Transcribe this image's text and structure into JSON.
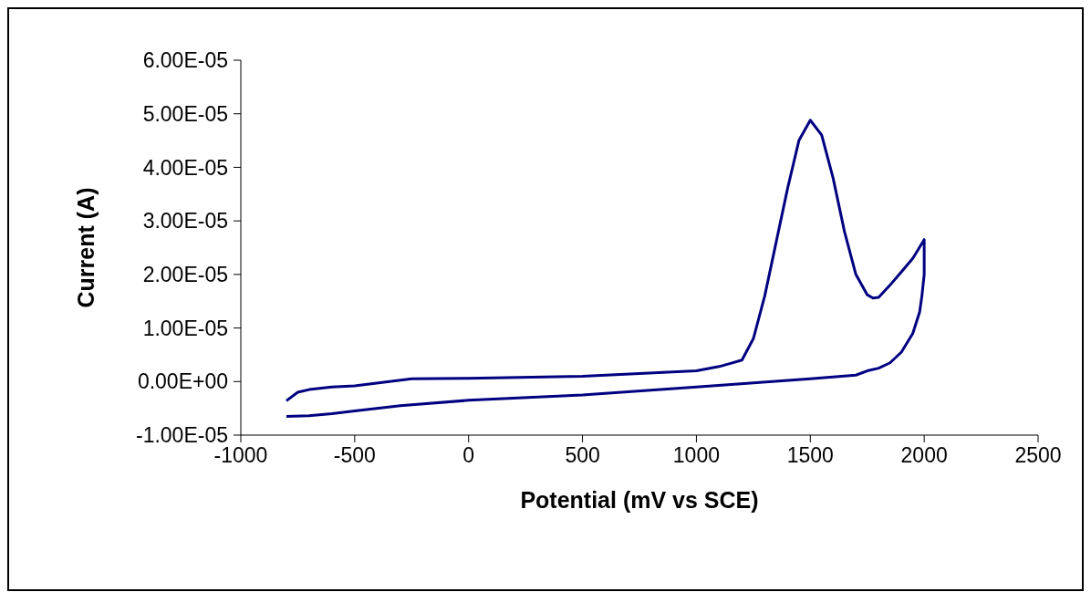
{
  "chart_data": {
    "type": "line",
    "xlabel": "Potential (mV vs SCE)",
    "ylabel": "Current (A)",
    "xlim": [
      -1000,
      2500
    ],
    "xticks": [
      -1000,
      -500,
      0,
      500,
      1000,
      1500,
      2000,
      2500
    ],
    "ylim": [
      -1e-05,
      6e-05
    ],
    "yticks": [
      {
        "value": -1e-05,
        "label": "-1.00E-05"
      },
      {
        "value": 0,
        "label": "0.00E+00"
      },
      {
        "value": 1e-05,
        "label": "1.00E-05"
      },
      {
        "value": 2e-05,
        "label": "2.00E-05"
      },
      {
        "value": 3e-05,
        "label": "3.00E-05"
      },
      {
        "value": 4e-05,
        "label": "4.00E-05"
      },
      {
        "value": 5e-05,
        "label": "5.00E-05"
      },
      {
        "value": 6e-05,
        "label": "6.00E-05"
      }
    ],
    "series": [
      {
        "color": "#000080",
        "x": [
          -800,
          -750,
          -700,
          -600,
          -500,
          -250,
          0,
          500,
          1000,
          1100,
          1150,
          1200,
          1250,
          1300,
          1350,
          1400,
          1450,
          1500,
          1550,
          1600,
          1650,
          1700,
          1750,
          1775,
          1800,
          1850,
          1900,
          1950,
          2000,
          2000,
          1990,
          1980,
          1950,
          1900,
          1850,
          1800,
          1750,
          1700,
          1500,
          1000,
          500,
          0,
          -300,
          -500,
          -600,
          -700,
          -800
        ],
        "values": [
          -3.6e-06,
          -2e-06,
          -1.5e-06,
          -1e-06,
          -8e-07,
          5e-07,
          6e-07,
          1e-06,
          2e-06,
          2.8e-06,
          3.4e-06,
          4e-06,
          8e-06,
          1.6e-05,
          2.6e-05,
          3.6e-05,
          4.5e-05,
          4.88e-05,
          4.6e-05,
          3.8e-05,
          2.8e-05,
          2e-05,
          1.62e-05,
          1.56e-05,
          1.57e-05,
          1.8e-05,
          2.05e-05,
          2.3e-05,
          2.65e-05,
          2e-05,
          1.6e-05,
          1.3e-05,
          9e-06,
          5.5e-06,
          3.5e-06,
          2.5e-06,
          2e-06,
          1.2e-06,
          5e-07,
          -1e-06,
          -2.5e-06,
          -3.5e-06,
          -4.5e-06,
          -5.5e-06,
          -6e-06,
          -6.4e-06,
          -6.5e-06
        ]
      }
    ]
  }
}
